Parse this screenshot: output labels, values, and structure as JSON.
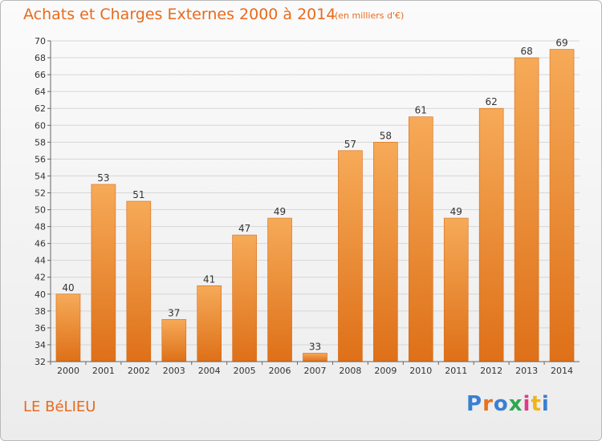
{
  "header": {
    "title": "Achats et Charges Externes 2000 à 2014",
    "subtitle": "(en milliers d'€)"
  },
  "footer": {
    "place": "LE BéLIEU",
    "logo": "Proxiti",
    "logo_colors": [
      "#3a7fd1",
      "#e8711f",
      "#3a7fd1",
      "#2fa84f",
      "#e03c8a",
      "#f0b41c",
      "#3a7fd1"
    ]
  },
  "chart_data": {
    "type": "bar",
    "title": "Achats et Charges Externes 2000 à 2014",
    "subtitle": "(en milliers d'€)",
    "categories": [
      "2000",
      "2001",
      "2002",
      "2003",
      "2004",
      "2005",
      "2006",
      "2007",
      "2008",
      "2009",
      "2010",
      "2011",
      "2012",
      "2013",
      "2014"
    ],
    "values": [
      40,
      53,
      51,
      37,
      41,
      47,
      49,
      33,
      57,
      58,
      61,
      49,
      62,
      68,
      69
    ],
    "ylim": [
      32,
      70
    ],
    "yticks": [
      32,
      34,
      36,
      38,
      40,
      42,
      44,
      46,
      48,
      50,
      52,
      54,
      56,
      58,
      60,
      62,
      64,
      66,
      68,
      70
    ],
    "grid": true,
    "bar_color": "#f0913a",
    "bar_color_light": "#f6aa58",
    "bar_color_dark": "#de7018"
  }
}
